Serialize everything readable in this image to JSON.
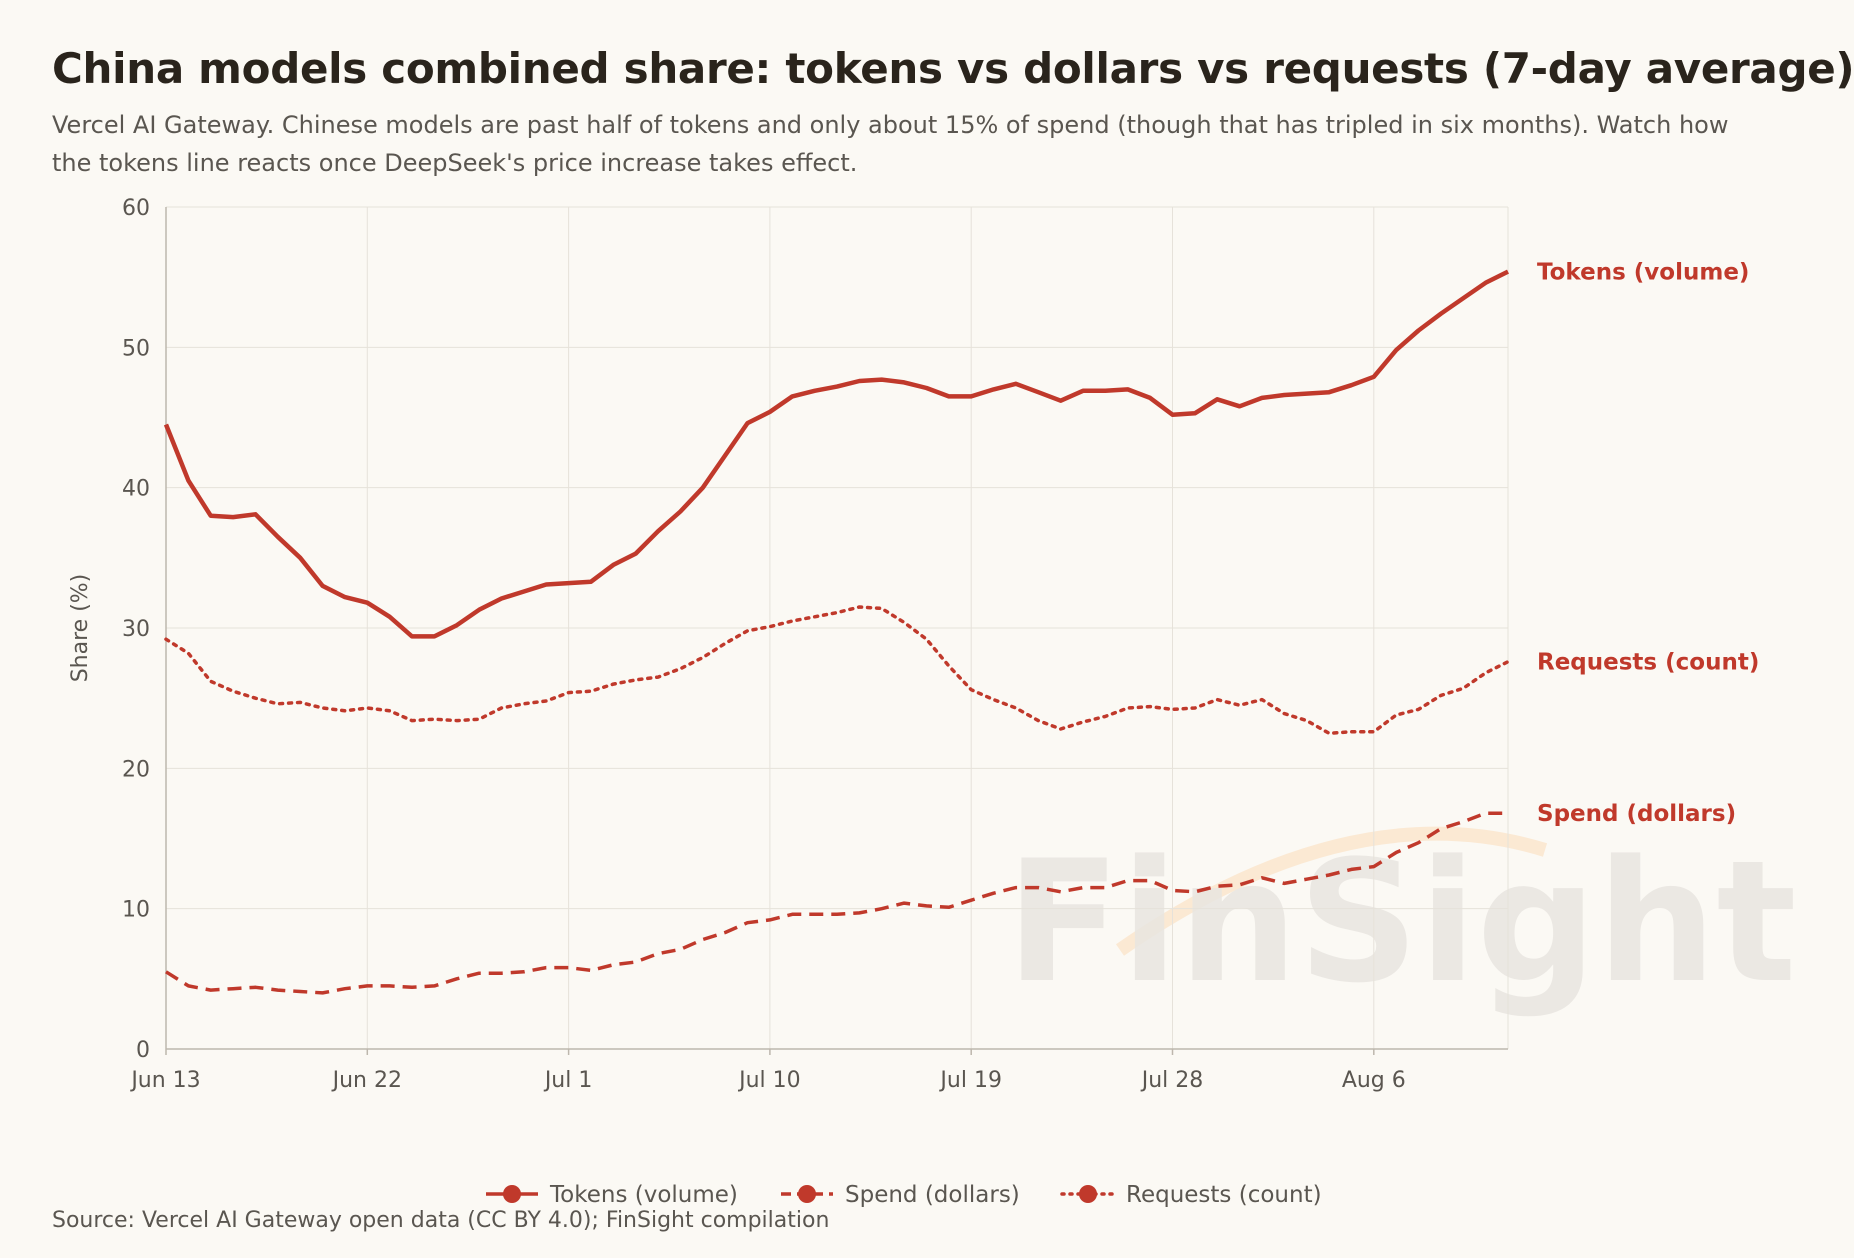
{
  "title": "China models combined share: tokens vs dollars vs requests (7-day average)",
  "subtitle": "Vercel AI Gateway. Chinese models are past half of tokens and only about 15% of spend (though that has tripled in six months). Watch how the tokens line reacts once DeepSeek's price increase takes effect.",
  "source": "Source: Vercel AI Gateway open data (CC BY 4.0); FinSight compilation",
  "watermark": "FinSight",
  "colors": {
    "series": "#c0392b",
    "grid": "#e6e2da",
    "axis": "#bdb7ad",
    "tick": "#5a5650",
    "watermark": "#e9e6e1",
    "watermark_accent": "#fbe7cf"
  },
  "chart_data": {
    "type": "line",
    "ylabel": "Share (%)",
    "xlabel": "",
    "ylim": [
      0,
      60
    ],
    "yticks": [
      0,
      10,
      20,
      30,
      40,
      50,
      60
    ],
    "xlim_days": [
      0,
      60
    ],
    "xticks": [
      {
        "day": 0,
        "label": "Jun 13"
      },
      {
        "day": 9,
        "label": "Jun 22"
      },
      {
        "day": 18,
        "label": "Jul 1"
      },
      {
        "day": 27,
        "label": "Jul 10"
      },
      {
        "day": 36,
        "label": "Jul 19"
      },
      {
        "day": 45,
        "label": "Jul 28"
      },
      {
        "day": 54,
        "label": "Aug 6"
      }
    ],
    "grid": true,
    "legend_position": "bottom",
    "series": [
      {
        "name": "Tokens (volume)",
        "style": "solid",
        "end_label": "Tokens (volume)",
        "points": [
          [
            0,
            44.5
          ],
          [
            1,
            40.5
          ],
          [
            2,
            38
          ],
          [
            3,
            37.9
          ],
          [
            4,
            38.1
          ],
          [
            5,
            36.5
          ],
          [
            6,
            35
          ],
          [
            7,
            33
          ],
          [
            8,
            32.2
          ],
          [
            9,
            31.8
          ],
          [
            10,
            30.8
          ],
          [
            11,
            29.4
          ],
          [
            12,
            29.4
          ],
          [
            13,
            30.2
          ],
          [
            14,
            31.3
          ],
          [
            15,
            32.1
          ],
          [
            16,
            32.6
          ],
          [
            17,
            33.1
          ],
          [
            18,
            33.2
          ],
          [
            19,
            33.3
          ],
          [
            20,
            34.5
          ],
          [
            21,
            35.3
          ],
          [
            22,
            36.9
          ],
          [
            23,
            38.3
          ],
          [
            24,
            40
          ],
          [
            25,
            42.3
          ],
          [
            26,
            44.6
          ],
          [
            27,
            45.4
          ],
          [
            28,
            46.5
          ],
          [
            29,
            46.9
          ],
          [
            30,
            47.2
          ],
          [
            31,
            47.6
          ],
          [
            32,
            47.7
          ],
          [
            33,
            47.5
          ],
          [
            34,
            47.1
          ],
          [
            35,
            46.5
          ],
          [
            36,
            46.5
          ],
          [
            37,
            47
          ],
          [
            38,
            47.4
          ],
          [
            39,
            46.8
          ],
          [
            40,
            46.2
          ],
          [
            41,
            46.9
          ],
          [
            42,
            46.9
          ],
          [
            43,
            47
          ],
          [
            44,
            46.4
          ],
          [
            45,
            45.2
          ],
          [
            46,
            45.3
          ],
          [
            47,
            46.3
          ],
          [
            48,
            45.8
          ],
          [
            49,
            46.4
          ],
          [
            50,
            46.6
          ],
          [
            51,
            46.7
          ],
          [
            52,
            46.8
          ],
          [
            53,
            47.3
          ],
          [
            54,
            47.9
          ],
          [
            55,
            49.8
          ],
          [
            56,
            51.2
          ],
          [
            57,
            52.4
          ],
          [
            58,
            53.5
          ],
          [
            59,
            54.6
          ],
          [
            60,
            55.4
          ]
        ]
      },
      {
        "name": "Spend (dollars)",
        "style": "dashed",
        "end_label": "Spend (dollars)",
        "points": [
          [
            0,
            5.5
          ],
          [
            1,
            4.5
          ],
          [
            2,
            4.2
          ],
          [
            3,
            4.3
          ],
          [
            4,
            4.4
          ],
          [
            5,
            4.2
          ],
          [
            6,
            4.1
          ],
          [
            7,
            4
          ],
          [
            8,
            4.3
          ],
          [
            9,
            4.5
          ],
          [
            10,
            4.5
          ],
          [
            11,
            4.4
          ],
          [
            12,
            4.5
          ],
          [
            13,
            5
          ],
          [
            14,
            5.4
          ],
          [
            15,
            5.4
          ],
          [
            16,
            5.5
          ],
          [
            17,
            5.8
          ],
          [
            18,
            5.8
          ],
          [
            19,
            5.6
          ],
          [
            20,
            6
          ],
          [
            21,
            6.2
          ],
          [
            22,
            6.8
          ],
          [
            23,
            7.1
          ],
          [
            24,
            7.8
          ],
          [
            25,
            8.3
          ],
          [
            26,
            9
          ],
          [
            27,
            9.2
          ],
          [
            28,
            9.6
          ],
          [
            29,
            9.6
          ],
          [
            30,
            9.6
          ],
          [
            31,
            9.7
          ],
          [
            32,
            10
          ],
          [
            33,
            10.4
          ],
          [
            34,
            10.2
          ],
          [
            35,
            10.1
          ],
          [
            36,
            10.6
          ],
          [
            37,
            11.1
          ],
          [
            38,
            11.5
          ],
          [
            39,
            11.5
          ],
          [
            40,
            11.2
          ],
          [
            41,
            11.5
          ],
          [
            42,
            11.5
          ],
          [
            43,
            12
          ],
          [
            44,
            12
          ],
          [
            45,
            11.3
          ],
          [
            46,
            11.2
          ],
          [
            47,
            11.6
          ],
          [
            48,
            11.7
          ],
          [
            49,
            12.2
          ],
          [
            50,
            11.8
          ],
          [
            51,
            12.1
          ],
          [
            52,
            12.4
          ],
          [
            53,
            12.8
          ],
          [
            54,
            13
          ],
          [
            55,
            14
          ],
          [
            56,
            14.7
          ],
          [
            57,
            15.7
          ],
          [
            58,
            16.2
          ],
          [
            59,
            16.8
          ],
          [
            60,
            16.8
          ]
        ]
      },
      {
        "name": "Requests (count)",
        "style": "dotted",
        "end_label": "Requests (count)",
        "points": [
          [
            0,
            29.2
          ],
          [
            1,
            28.2
          ],
          [
            2,
            26.2
          ],
          [
            3,
            25.5
          ],
          [
            4,
            25
          ],
          [
            5,
            24.6
          ],
          [
            6,
            24.7
          ],
          [
            7,
            24.3
          ],
          [
            8,
            24.1
          ],
          [
            9,
            24.3
          ],
          [
            10,
            24.1
          ],
          [
            11,
            23.4
          ],
          [
            12,
            23.5
          ],
          [
            13,
            23.4
          ],
          [
            14,
            23.5
          ],
          [
            15,
            24.3
          ],
          [
            16,
            24.6
          ],
          [
            17,
            24.8
          ],
          [
            18,
            25.4
          ],
          [
            19,
            25.5
          ],
          [
            20,
            26
          ],
          [
            21,
            26.3
          ],
          [
            22,
            26.5
          ],
          [
            23,
            27.1
          ],
          [
            24,
            27.9
          ],
          [
            25,
            28.9
          ],
          [
            26,
            29.8
          ],
          [
            27,
            30.1
          ],
          [
            28,
            30.5
          ],
          [
            29,
            30.8
          ],
          [
            30,
            31.1
          ],
          [
            31,
            31.5
          ],
          [
            32,
            31.4
          ],
          [
            33,
            30.4
          ],
          [
            34,
            29.2
          ],
          [
            35,
            27.3
          ],
          [
            36,
            25.6
          ],
          [
            37,
            24.9
          ],
          [
            38,
            24.3
          ],
          [
            39,
            23.4
          ],
          [
            40,
            22.8
          ],
          [
            41,
            23.3
          ],
          [
            42,
            23.7
          ],
          [
            43,
            24.3
          ],
          [
            44,
            24.4
          ],
          [
            45,
            24.2
          ],
          [
            46,
            24.3
          ],
          [
            47,
            24.9
          ],
          [
            48,
            24.5
          ],
          [
            49,
            24.9
          ],
          [
            50,
            23.9
          ],
          [
            51,
            23.4
          ],
          [
            52,
            22.5
          ],
          [
            53,
            22.6
          ],
          [
            54,
            22.6
          ],
          [
            55,
            23.8
          ],
          [
            56,
            24.2
          ],
          [
            57,
            25.2
          ],
          [
            58,
            25.7
          ],
          [
            59,
            26.8
          ],
          [
            60,
            27.6
          ]
        ]
      }
    ]
  }
}
